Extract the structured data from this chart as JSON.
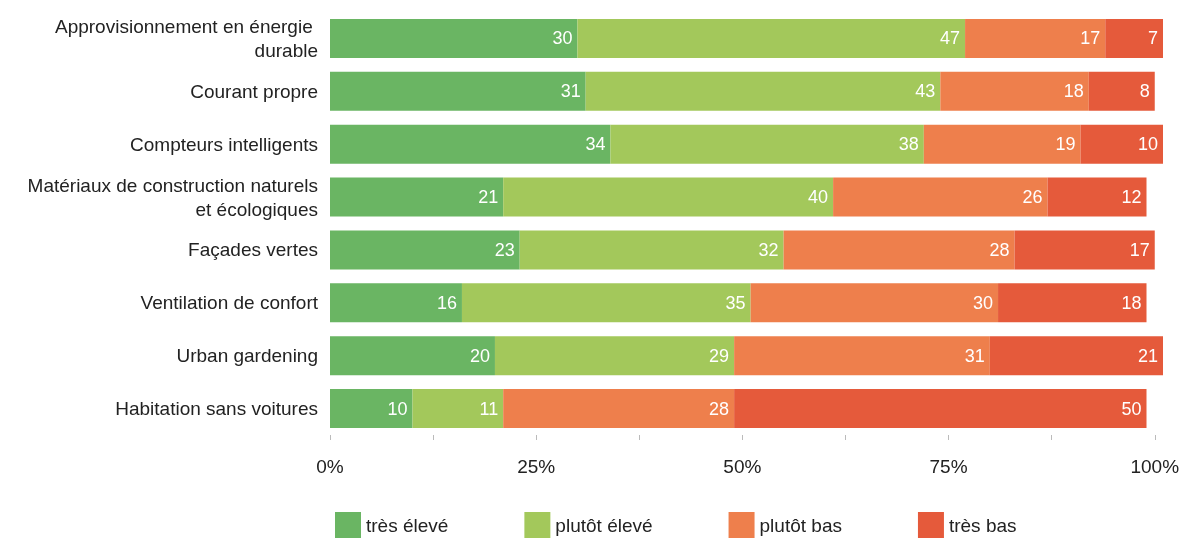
{
  "chart_data": {
    "type": "bar",
    "orientation": "horizontal",
    "stacked": true,
    "data_labels": true,
    "grid": false,
    "legend": "bottom",
    "categories": [
      "Approvisionnement en énergie durable",
      "Courant propre",
      "Compteurs intelligents",
      "Matériaux de construction naturels et écologiques",
      "Façades vertes",
      "Ventilation de confort",
      "Urban gardening",
      "Habitation sans voitures"
    ],
    "series": [
      {
        "name": "très élevé",
        "color": "#6ab563",
        "values": [
          30,
          31,
          34,
          21,
          23,
          16,
          20,
          10
        ]
      },
      {
        "name": "plutôt élevé",
        "color": "#a3c85b",
        "values": [
          47,
          43,
          38,
          40,
          32,
          35,
          29,
          11
        ]
      },
      {
        "name": "plutôt bas",
        "color": "#ee7f4c",
        "values": [
          17,
          18,
          19,
          26,
          28,
          30,
          31,
          28
        ]
      },
      {
        "name": "très bas",
        "color": "#e55a3b",
        "values": [
          7,
          8,
          10,
          12,
          17,
          18,
          21,
          50
        ]
      }
    ],
    "xlim": [
      0,
      101
    ],
    "xticks": [
      {
        "value": 0,
        "label": "0%"
      },
      {
        "value": 12.5,
        "label": null
      },
      {
        "value": 25,
        "label": "25%"
      },
      {
        "value": 37.5,
        "label": null
      },
      {
        "value": 50,
        "label": "50%"
      },
      {
        "value": 62.5,
        "label": null
      },
      {
        "value": 75,
        "label": "75%"
      },
      {
        "value": 87.5,
        "label": null
      },
      {
        "value": 100,
        "label": "100%"
      }
    ]
  }
}
